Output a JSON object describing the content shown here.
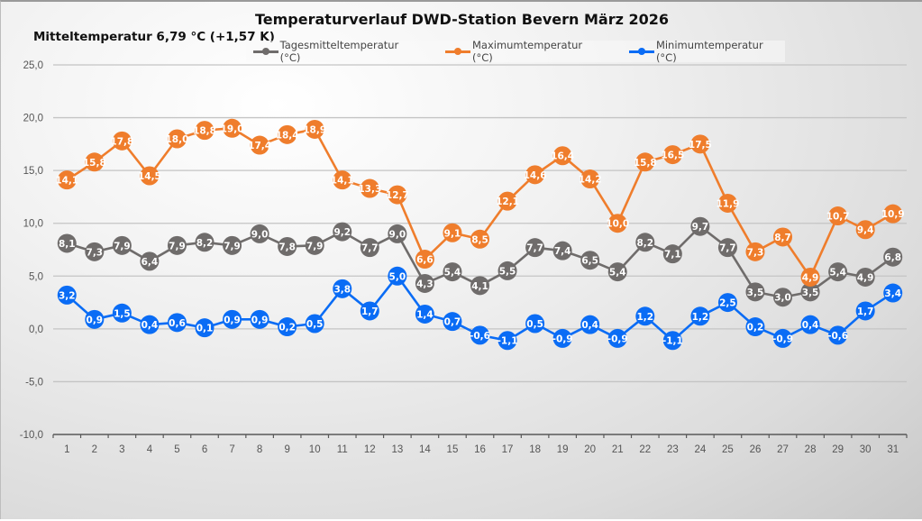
{
  "chart_data": {
    "type": "line",
    "title": "Temperaturverlauf DWD-Station Bevern März 2026",
    "subtitle": "Mitteltemperatur 6,79 °C (+1,57 K)",
    "xlabel": "",
    "ylabel": "",
    "x": [
      1,
      2,
      3,
      4,
      5,
      6,
      7,
      8,
      9,
      10,
      11,
      12,
      13,
      14,
      15,
      16,
      17,
      18,
      19,
      20,
      21,
      22,
      23,
      24,
      25,
      26,
      27,
      28,
      29,
      30,
      31
    ],
    "ylim": [
      -10,
      25
    ],
    "yticks": [
      -10,
      -5,
      0,
      5,
      10,
      15,
      20,
      25
    ],
    "ytick_labels": [
      "-10,0",
      "-5,0",
      "0,0",
      "5,0",
      "10,0",
      "15,0",
      "20,0",
      "25,0"
    ],
    "grid": true,
    "legend_position": "top-center",
    "decimal_separator": ",",
    "series": [
      {
        "name": "Tagesmitteltemperatur (°C)",
        "color": "#6f6c6b",
        "values": [
          8.1,
          7.3,
          7.9,
          6.4,
          7.9,
          8.2,
          7.9,
          9.0,
          7.8,
          7.9,
          9.2,
          7.7,
          9.0,
          4.3,
          5.4,
          4.1,
          5.5,
          7.7,
          7.4,
          6.5,
          5.4,
          8.2,
          7.1,
          9.7,
          7.7,
          3.5,
          3.0,
          3.5,
          5.4,
          4.9,
          6.8
        ]
      },
      {
        "name": "Maximumtemperatur (°C)",
        "color": "#ef7d2c",
        "values": [
          14.1,
          15.8,
          17.8,
          14.5,
          18.0,
          18.8,
          19.0,
          17.4,
          18.4,
          18.9,
          14.1,
          13.3,
          12.7,
          6.6,
          9.1,
          8.5,
          12.1,
          14.6,
          16.4,
          14.2,
          10.0,
          15.8,
          16.5,
          17.5,
          11.9,
          7.3,
          8.7,
          4.9,
          10.7,
          9.4,
          10.9
        ]
      },
      {
        "name": "Minimumtemperatur (°C)",
        "color": "#0a6cf5",
        "values": [
          3.2,
          0.9,
          1.5,
          0.4,
          0.6,
          0.1,
          0.9,
          0.9,
          0.2,
          0.5,
          3.8,
          1.7,
          5.0,
          1.4,
          0.7,
          -0.6,
          -1.1,
          0.5,
          -0.9,
          0.4,
          -0.9,
          1.2,
          -1.1,
          1.2,
          2.5,
          0.2,
          -0.9,
          0.4,
          -0.6,
          1.7,
          3.4
        ]
      }
    ]
  }
}
